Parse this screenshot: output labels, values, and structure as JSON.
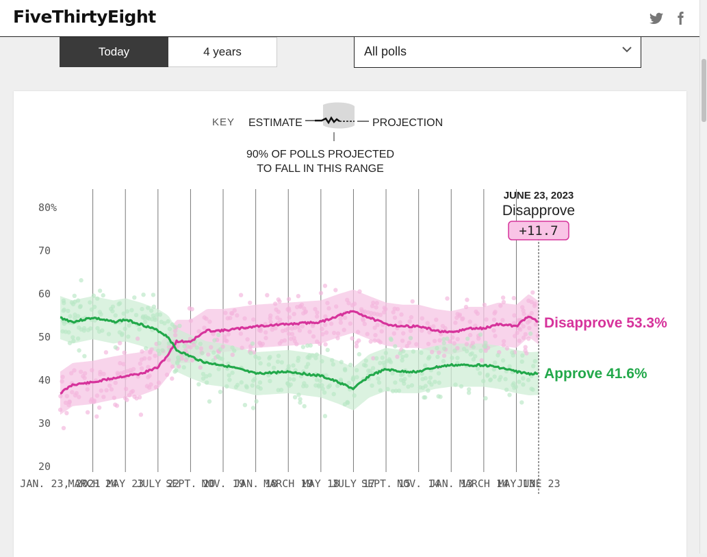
{
  "site": {
    "logo": "FiveThirtyEight",
    "icons": [
      "twitter-icon",
      "facebook-icon"
    ]
  },
  "controls": {
    "tabs": [
      {
        "label": "Today",
        "active": true
      },
      {
        "label": "4 years",
        "active": false
      }
    ],
    "poll_filter": {
      "selected": "All polls"
    }
  },
  "key": {
    "label": "KEY",
    "estimate": "ESTIMATE",
    "projection": "PROJECTION",
    "range_note_line1": "90% OF POLLS PROJECTED",
    "range_note_line2": "TO FALL IN THIS RANGE"
  },
  "tooltip": {
    "date": "JUNE 23, 2023",
    "label": "Disapprove",
    "margin": "+11.7"
  },
  "colors": {
    "approve": "#22a84a",
    "disapprove": "#d6339b",
    "approve_band": "#cfeed6",
    "disapprove_band": "#f6c6e4"
  },
  "chart_data": {
    "type": "line",
    "ylim": [
      20,
      80
    ],
    "yticks": [
      "80%",
      "70",
      "60",
      "50",
      "40",
      "30",
      "20"
    ],
    "xticks": [
      "JAN. 23, 2021",
      "MARCH 24",
      "MAY 23",
      "JULY 22",
      "SEPT. 20",
      "NOV. 19",
      "JAN. 18",
      "MARCH 19",
      "MAY 18",
      "JULY 17",
      "SEPT. 15",
      "NOV. 14",
      "JAN. 13",
      "MARCH 14",
      "MAY 13",
      "JUNE 23"
    ],
    "series": [
      {
        "name": "Disapprove",
        "end_label": "Disapprove 53.3%",
        "x": [
          "2021-01-23",
          "2021-02-15",
          "2021-03-24",
          "2021-05-01",
          "2021-05-23",
          "2021-06-20",
          "2021-07-22",
          "2021-08-10",
          "2021-08-25",
          "2021-09-20",
          "2021-10-20",
          "2021-11-19",
          "2021-12-20",
          "2022-01-18",
          "2022-03-19",
          "2022-05-18",
          "2022-06-20",
          "2022-07-17",
          "2022-08-15",
          "2022-09-15",
          "2022-10-15",
          "2022-11-14",
          "2022-12-15",
          "2023-01-13",
          "2023-02-15",
          "2023-03-14",
          "2023-04-10",
          "2023-05-13",
          "2023-06-05",
          "2023-06-23"
        ],
        "values": [
          37,
          39,
          39.5,
          40.5,
          41,
          41.5,
          43,
          46,
          49,
          49,
          51.5,
          51.5,
          52,
          52.5,
          53,
          53.5,
          55,
          56,
          54.5,
          53,
          52.5,
          52.5,
          51.5,
          51,
          52,
          52,
          53,
          52.5,
          55,
          53.3
        ]
      },
      {
        "name": "Approve",
        "end_label": "Approve 41.6%",
        "x": [
          "2021-01-23",
          "2021-02-15",
          "2021-03-24",
          "2021-05-01",
          "2021-05-23",
          "2021-06-20",
          "2021-07-22",
          "2021-08-10",
          "2021-08-25",
          "2021-09-20",
          "2021-10-20",
          "2021-11-19",
          "2021-12-20",
          "2022-01-18",
          "2022-03-19",
          "2022-05-18",
          "2022-06-20",
          "2022-07-17",
          "2022-08-15",
          "2022-09-15",
          "2022-10-15",
          "2022-11-14",
          "2022-12-15",
          "2023-01-13",
          "2023-02-15",
          "2023-03-14",
          "2023-04-10",
          "2023-05-13",
          "2023-06-05",
          "2023-06-23"
        ],
        "values": [
          54.5,
          53.5,
          54.5,
          53.5,
          54,
          53,
          51.5,
          50,
          47,
          45.5,
          44,
          43.5,
          42.5,
          41.5,
          42,
          41,
          39.5,
          38,
          41,
          42.5,
          42,
          42,
          43,
          43.5,
          43.5,
          43.5,
          43,
          42,
          41.5,
          41.6
        ]
      }
    ]
  }
}
